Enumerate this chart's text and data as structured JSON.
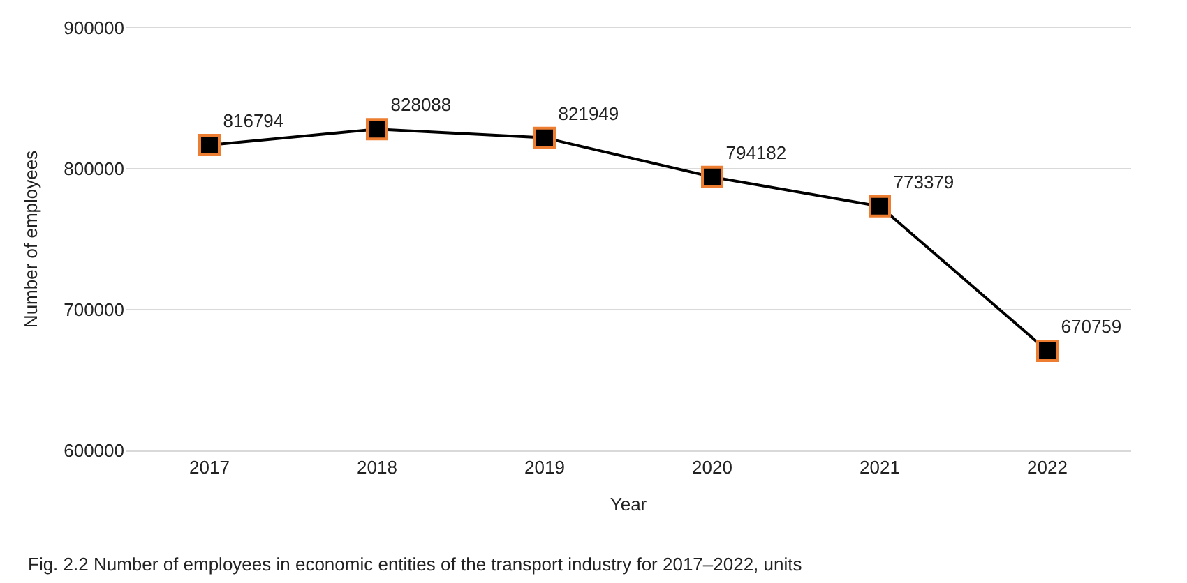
{
  "chart_data": {
    "type": "line",
    "xlabel": "Year",
    "ylabel": "Number of employees",
    "categories": [
      "2017",
      "2018",
      "2019",
      "2020",
      "2021",
      "2022"
    ],
    "series": [
      {
        "color": "#000000",
        "values": [
          816794,
          828088,
          821949,
          794182,
          773379,
          670759
        ]
      }
    ],
    "ylim": [
      600000,
      900000
    ],
    "yticks": [
      600000,
      700000,
      800000,
      900000
    ],
    "grid": "y",
    "marker": "square",
    "line_style": "solid",
    "data_labels": true,
    "annotations": [
      "Fig. 2.2 Number of employees in economic entities of the transport industry for 2017–2022, units"
    ]
  }
}
